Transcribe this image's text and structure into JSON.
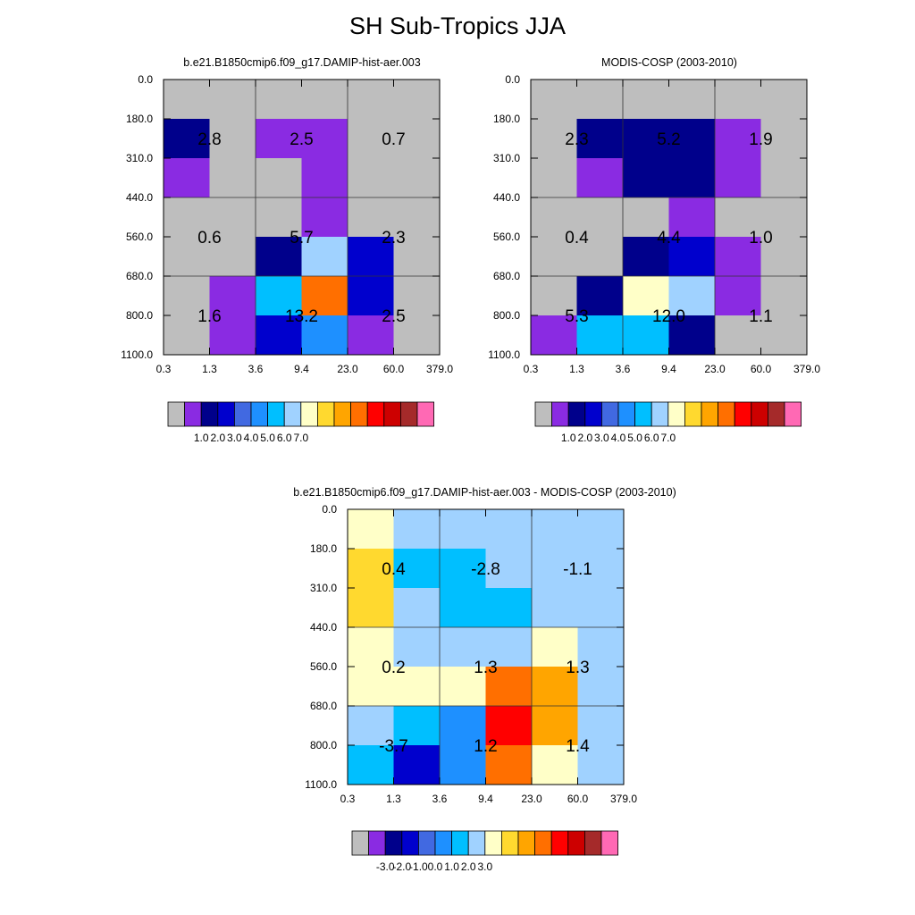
{
  "title": "SH Sub-Tropics JJA",
  "colors": {
    "palette": [
      "#bebebe",
      "#8a2be2",
      "#00008b",
      "#0000cd",
      "#4169e1",
      "#1e90ff",
      "#00bfff",
      "#a0d2ff",
      "#ffffc8",
      "#ffd92f",
      "#ffa500",
      "#ff6f00",
      "#ff0000",
      "#cd0000",
      "#a52a2a",
      "#ff69b4"
    ]
  },
  "x_ticks": [
    "0.3",
    "1.3",
    "3.6",
    "9.4",
    "23.0",
    "60.0",
    "379.0"
  ],
  "y_ticks": [
    "0.0",
    "180.0",
    "310.0",
    "440.0",
    "560.0",
    "680.0",
    "800.0",
    "1100.0"
  ],
  "chart_data": [
    {
      "type": "heatmap",
      "title": "b.e21.B1850cmip6.f09_g17.DAMIP-hist-aer.003",
      "x_bins": [
        "0.3",
        "1.3",
        "3.6",
        "9.4",
        "23.0",
        "60.0",
        "379.0"
      ],
      "y_bins": [
        "0.0",
        "180.0",
        "310.0",
        "440.0",
        "560.0",
        "680.0",
        "800.0",
        "1100.0"
      ],
      "cell_color_index": [
        [
          0,
          0,
          0,
          0,
          0,
          0
        ],
        [
          2,
          0,
          1,
          1,
          0,
          0
        ],
        [
          1,
          0,
          0,
          1,
          0,
          0
        ],
        [
          0,
          0,
          0,
          1,
          0,
          0
        ],
        [
          0,
          0,
          2,
          7,
          3,
          0
        ],
        [
          0,
          1,
          6,
          11,
          3,
          0
        ],
        [
          0,
          1,
          3,
          5,
          1,
          0
        ]
      ],
      "group_values": [
        [
          "2.8",
          "2.5",
          "0.7"
        ],
        [
          "0.6",
          "5.7",
          "2.3"
        ],
        [
          "1.6",
          "13.2",
          "2.5"
        ]
      ],
      "colorbar": {
        "labels": [
          "1.0",
          "2.0",
          "3.0",
          "4.0",
          "5.0",
          "6.0",
          "7.0"
        ]
      }
    },
    {
      "type": "heatmap",
      "title": "MODIS-COSP (2003-2010)",
      "x_bins": [
        "0.3",
        "1.3",
        "3.6",
        "9.4",
        "23.0",
        "60.0",
        "379.0"
      ],
      "y_bins": [
        "0.0",
        "180.0",
        "310.0",
        "440.0",
        "560.0",
        "680.0",
        "800.0",
        "1100.0"
      ],
      "cell_color_index": [
        [
          0,
          0,
          0,
          0,
          0,
          0
        ],
        [
          0,
          2,
          2,
          2,
          1,
          0
        ],
        [
          0,
          1,
          2,
          2,
          1,
          0
        ],
        [
          0,
          0,
          0,
          1,
          0,
          0
        ],
        [
          0,
          0,
          2,
          3,
          1,
          0
        ],
        [
          0,
          2,
          8,
          7,
          1,
          0
        ],
        [
          1,
          6,
          6,
          2,
          0,
          0
        ]
      ],
      "group_values": [
        [
          "2.3",
          "5.2",
          "1.9"
        ],
        [
          "0.4",
          "4.4",
          "1.0"
        ],
        [
          "5.3",
          "12.0",
          "1.1"
        ]
      ],
      "colorbar": {
        "labels": [
          "1.0",
          "2.0",
          "3.0",
          "4.0",
          "5.0",
          "6.0",
          "7.0"
        ]
      }
    },
    {
      "type": "heatmap",
      "title": "b.e21.B1850cmip6.f09_g17.DAMIP-hist-aer.003 - MODIS-COSP (2003-2010)",
      "x_bins": [
        "0.3",
        "1.3",
        "3.6",
        "9.4",
        "23.0",
        "60.0",
        "379.0"
      ],
      "y_bins": [
        "0.0",
        "180.0",
        "310.0",
        "440.0",
        "560.0",
        "680.0",
        "800.0",
        "1100.0"
      ],
      "cell_color_index": [
        [
          8,
          7,
          7,
          7,
          7,
          7
        ],
        [
          9,
          6,
          6,
          7,
          7,
          7
        ],
        [
          9,
          7,
          6,
          6,
          7,
          7
        ],
        [
          8,
          7,
          7,
          7,
          8,
          7
        ],
        [
          8,
          8,
          8,
          11,
          10,
          7
        ],
        [
          7,
          6,
          5,
          12,
          10,
          7
        ],
        [
          6,
          3,
          5,
          11,
          8,
          7
        ]
      ],
      "group_values": [
        [
          "0.4",
          "-2.8",
          "-1.1"
        ],
        [
          "0.2",
          "1.3",
          "1.3"
        ],
        [
          "-3.7",
          "1.2",
          "1.4"
        ]
      ],
      "colorbar": {
        "labels": [
          "-3.0",
          "-2.0",
          "-1.0",
          "0.0",
          "1.0",
          "2.0",
          "3.0"
        ]
      }
    }
  ]
}
